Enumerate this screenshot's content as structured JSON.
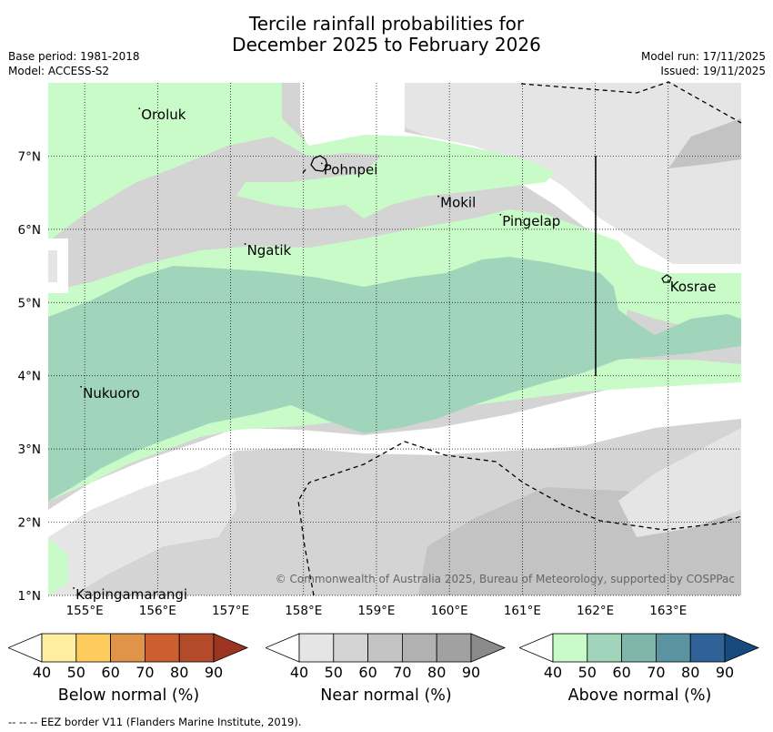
{
  "title": {
    "line1": "Tercile rainfall probabilities for",
    "line2": "December 2025 to February 2026"
  },
  "meta": {
    "base_period": "Base period: 1981-2018",
    "model": "Model: ACCESS-S2",
    "model_run": "Model run: 17/11/2025",
    "issued": "Issued: 19/11/2025"
  },
  "map": {
    "lon_range": [
      154.5,
      164.0
    ],
    "lat_range": [
      1.0,
      8.0
    ],
    "x_ticks": [
      {
        "value": 155,
        "label": "155°E"
      },
      {
        "value": 156,
        "label": "156°E"
      },
      {
        "value": 157,
        "label": "157°E"
      },
      {
        "value": 158,
        "label": "158°E"
      },
      {
        "value": 159,
        "label": "159°E"
      },
      {
        "value": 160,
        "label": "160°E"
      },
      {
        "value": 161,
        "label": "161°E"
      },
      {
        "value": 162,
        "label": "162°E"
      },
      {
        "value": 163,
        "label": "163°E"
      }
    ],
    "y_ticks": [
      {
        "value": 1,
        "label": "1°N"
      },
      {
        "value": 2,
        "label": "2°N"
      },
      {
        "value": 3,
        "label": "3°N"
      },
      {
        "value": 4,
        "label": "4°N"
      },
      {
        "value": 5,
        "label": "5°N"
      },
      {
        "value": 6,
        "label": "6°N"
      },
      {
        "value": 7,
        "label": "7°N"
      }
    ],
    "places": [
      {
        "name": "Oroluk",
        "lon": 155.75,
        "lat": 7.65
      },
      {
        "name": "Pohnpei",
        "lon": 158.25,
        "lat": 6.9
      },
      {
        "name": "Mokil",
        "lon": 159.85,
        "lat": 6.45
      },
      {
        "name": "Pingelap",
        "lon": 160.7,
        "lat": 6.2
      },
      {
        "name": "Ngatik",
        "lon": 157.2,
        "lat": 5.8
      },
      {
        "name": "Kosrae",
        "lon": 163.0,
        "lat": 5.3
      },
      {
        "name": "Nukuoro",
        "lon": 154.95,
        "lat": 3.85
      },
      {
        "name": "Kapingamarangi",
        "lon": 154.85,
        "lat": 1.1
      }
    ],
    "copyright": "© Commonwealth of Australia 2025, Bureau of Meteorology, supported by COSPPac"
  },
  "colorbars": [
    {
      "name": "below",
      "label": "Below normal (%)",
      "ticks": [
        "40",
        "50",
        "60",
        "70",
        "80",
        "90"
      ],
      "colors": [
        "#ffeda0",
        "#fecc5c",
        "#e0944a",
        "#cb5f30",
        "#b34a2a",
        "#9b3420"
      ]
    },
    {
      "name": "near",
      "label": "Near normal (%)",
      "ticks": [
        "40",
        "50",
        "60",
        "70",
        "80",
        "90"
      ],
      "colors": [
        "#e5e5e5",
        "#d4d4d4",
        "#c3c3c3",
        "#b1b1b1",
        "#a1a1a1",
        "#8a8a8a"
      ]
    },
    {
      "name": "above",
      "label": "Above normal (%)",
      "ticks": [
        "40",
        "50",
        "60",
        "70",
        "80",
        "90"
      ],
      "colors": [
        "#c8fbc8",
        "#a0d5bb",
        "#80b5aa",
        "#5a93a2",
        "#2f6296",
        "#174a7f"
      ]
    }
  ],
  "footer": "--  --  -- EEZ border V11 (Flanders Marine Institute, 2019)."
}
